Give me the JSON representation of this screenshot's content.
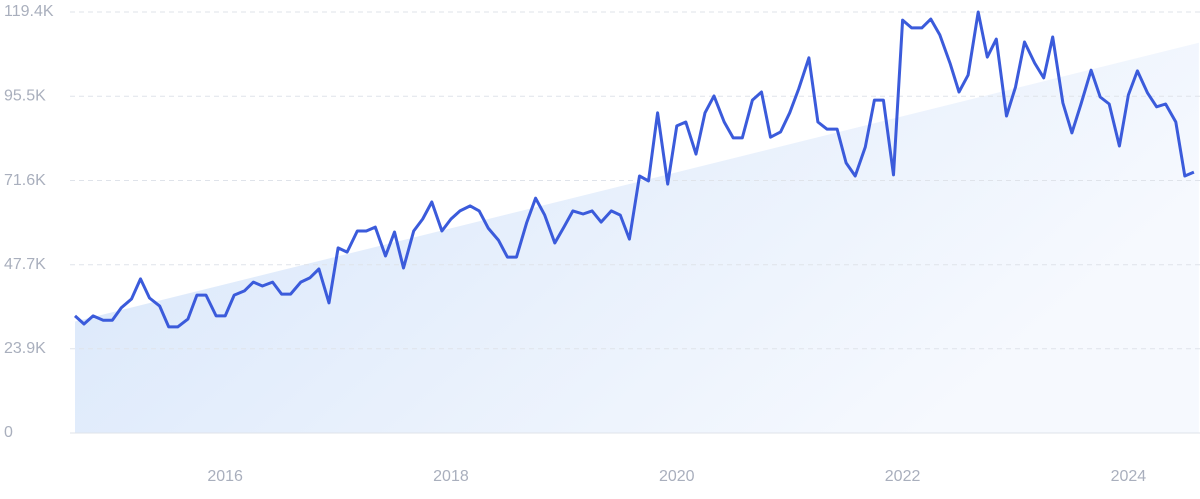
{
  "chart_data": {
    "type": "line",
    "color": "#3b5bdb",
    "xlim": [
      2014.67,
      2024.59
    ],
    "xticks": [
      2016,
      2018,
      2020,
      2022,
      2024
    ],
    "ylim": [
      0,
      119400
    ],
    "yticks": [
      0,
      {
        "value": 23900,
        "label": "23.9K"
      },
      {
        "value": 47700,
        "label": "47.7K"
      },
      {
        "value": 71600,
        "label": "71.6K"
      },
      {
        "value": 95500,
        "label": "95.5K"
      },
      {
        "value": 119400,
        "label": "119.4K"
      }
    ],
    "grid": true,
    "trend": true,
    "x": [
      2014.67,
      2014.75,
      2014.83,
      2014.92,
      2015.0,
      2015.08,
      2015.17,
      2015.25,
      2015.33,
      2015.42,
      2015.5,
      2015.58,
      2015.67,
      2015.75,
      2015.83,
      2015.92,
      2016.0,
      2016.08,
      2016.17,
      2016.25,
      2016.33,
      2016.42,
      2016.5,
      2016.58,
      2016.67,
      2016.75,
      2016.83,
      2016.92,
      2017.0,
      2017.08,
      2017.17,
      2017.25,
      2017.33,
      2017.42,
      2017.5,
      2017.58,
      2017.67,
      2017.75,
      2017.83,
      2017.92,
      2018.0,
      2018.08,
      2018.17,
      2018.25,
      2018.33,
      2018.42,
      2018.5,
      2018.58,
      2018.67,
      2018.75,
      2018.83,
      2018.92,
      2019.0,
      2019.08,
      2019.17,
      2019.25,
      2019.33,
      2019.42,
      2019.5,
      2019.58,
      2019.67,
      2019.75,
      2019.83,
      2019.92,
      2020.0,
      2020.08,
      2020.17,
      2020.25,
      2020.33,
      2020.42,
      2020.5,
      2020.58,
      2020.67,
      2020.75,
      2020.83,
      2020.92,
      2021.0,
      2021.08,
      2021.17,
      2021.25,
      2021.33,
      2021.42,
      2021.5,
      2021.58,
      2021.67,
      2021.75,
      2021.83,
      2021.92,
      2022.0,
      2022.08,
      2022.17,
      2022.25,
      2022.33,
      2022.42,
      2022.5,
      2022.58,
      2022.67,
      2022.75,
      2022.83,
      2022.92,
      2023.0,
      2023.08,
      2023.17,
      2023.25,
      2023.33,
      2023.42,
      2023.5,
      2023.58,
      2023.67,
      2023.75,
      2023.83,
      2023.92,
      2024.0,
      2024.08,
      2024.17,
      2024.25,
      2024.33,
      2024.42,
      2024.5,
      2024.58
    ],
    "values": [
      33200,
      30900,
      33200,
      32000,
      32000,
      35500,
      38000,
      43700,
      38300,
      36000,
      30100,
      30100,
      32300,
      39100,
      39100,
      33200,
      33200,
      39100,
      40300,
      42800,
      41700,
      42800,
      39400,
      39400,
      42800,
      44000,
      46500,
      36900,
      52500,
      51300,
      57300,
      57300,
      58400,
      50200,
      57000,
      46800,
      57300,
      60700,
      65500,
      57300,
      60700,
      63000,
      64400,
      63000,
      58100,
      54700,
      49900,
      49900,
      59600,
      66600,
      61800,
      53900,
      58400,
      63000,
      62100,
      63000,
      59800,
      63000,
      61800,
      55000,
      72900,
      71500,
      90800,
      70600,
      87100,
      88200,
      79100,
      90800,
      95600,
      88200,
      83700,
      83700,
      94400,
      96700,
      83900,
      85400,
      90800,
      97600,
      106400,
      88200,
      86200,
      86200,
      76600,
      72900,
      81100,
      94400,
      94400,
      73200,
      117100,
      114900,
      114900,
      117400,
      112900,
      104900,
      96700,
      101500,
      119400,
      106600,
      111700,
      89900,
      98100,
      110900,
      104900,
      100700,
      112300,
      93600,
      85100,
      93300,
      102900,
      95300,
      93300,
      81400,
      95900,
      102700,
      96400,
      92500,
      93300,
      88200,
      72900,
      74000
    ]
  }
}
